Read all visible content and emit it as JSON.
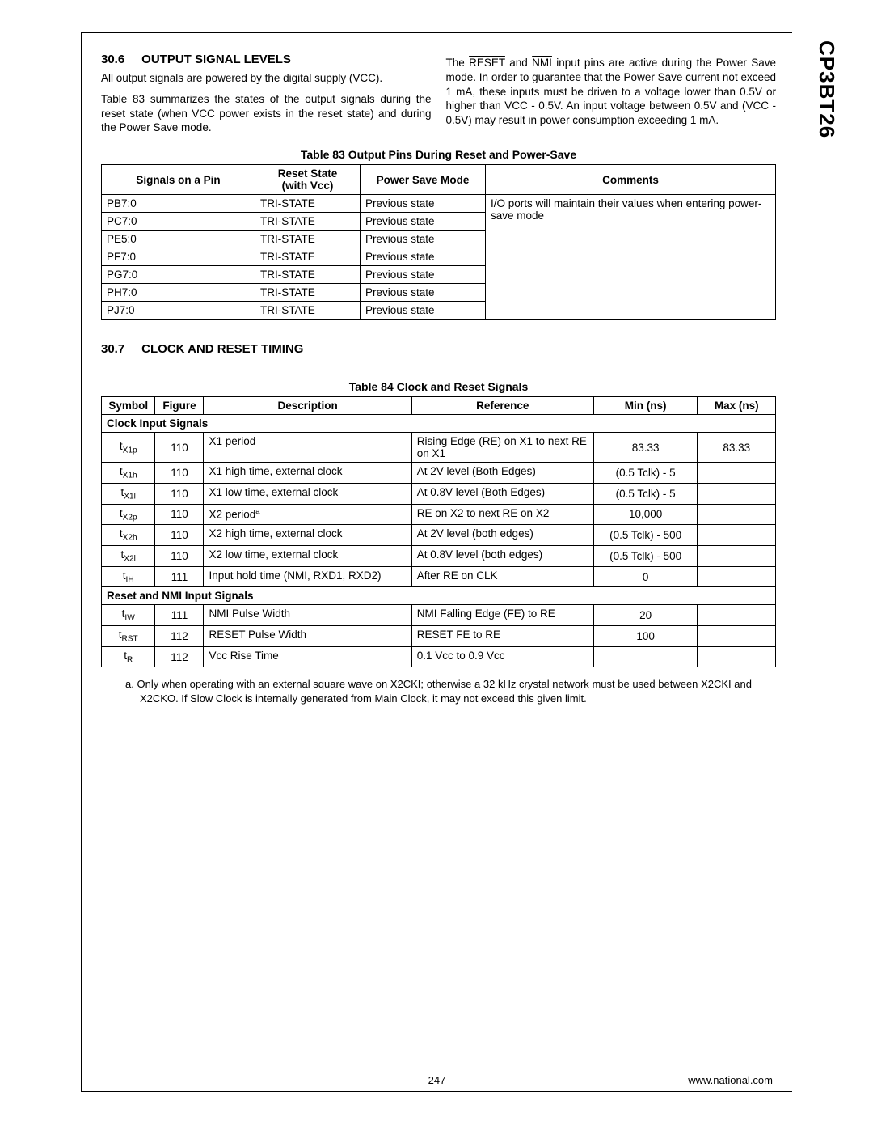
{
  "side_label": "CP3BT26",
  "section1": {
    "num": "30.6",
    "title": "OUTPUT SIGNAL LEVELS",
    "p1": "All output signals are powered by the digital supply (VCC).",
    "p2": "Table 83 summarizes the states of the output signals during the reset state (when VCC power exists in the reset state) and during the Power Save mode.",
    "p_right_pre": "The ",
    "p_right_mid1": " and ",
    "p_right_post": " input pins are active during the Power Save mode. In order to guarantee that the Power Save current not exceed 1 mA, these inputs must be driven to a voltage lower than 0.5V or higher than VCC - 0.5V. An input voltage between 0.5V and (VCC - 0.5V) may result in power consumption exceeding 1 mA.",
    "reset_word": "RESET",
    "nmi_word": "NMI"
  },
  "table83": {
    "caption": "Table 83    Output Pins During Reset and Power-Save",
    "headers": {
      "c0": "Signals on a Pin",
      "c1_l1": "Reset State",
      "c1_l2": "(with Vcc)",
      "c2": "Power Save Mode",
      "c3": "Comments"
    },
    "comment": "I/O ports will maintain their values when entering power-save mode",
    "rows": [
      {
        "pin": "PB7:0",
        "reset": "TRI-STATE",
        "psm": "Previous state"
      },
      {
        "pin": "PC7:0",
        "reset": "TRI-STATE",
        "psm": "Previous state"
      },
      {
        "pin": "PE5:0",
        "reset": "TRI-STATE",
        "psm": "Previous state"
      },
      {
        "pin": "PF7:0",
        "reset": "TRI-STATE",
        "psm": "Previous state"
      },
      {
        "pin": "PG7:0",
        "reset": "TRI-STATE",
        "psm": "Previous state"
      },
      {
        "pin": "PH7:0",
        "reset": "TRI-STATE",
        "psm": "Previous state"
      },
      {
        "pin": "PJ7:0",
        "reset": "TRI-STATE",
        "psm": "Previous state"
      }
    ]
  },
  "section2": {
    "num": "30.7",
    "title": "CLOCK AND RESET TIMING"
  },
  "table84": {
    "caption": "Table 84    Clock and Reset Signals",
    "headers": {
      "c0": "Symbol",
      "c1": "Figure",
      "c2": "Description",
      "c3": "Reference",
      "c4": "Min (ns)",
      "c5": "Max (ns)"
    },
    "sub1": "Clock Input Signals",
    "sub2": "Reset and NMI Input Signals",
    "clock_rows": [
      {
        "sym_base": "t",
        "sym_sub": "X1p",
        "fig": "110",
        "desc": "X1 period",
        "ref": "Rising Edge (RE) on X1 to next RE on X1",
        "min": "83.33",
        "max": "83.33"
      },
      {
        "sym_base": "t",
        "sym_sub": "X1h",
        "fig": "110",
        "desc": "X1 high time, external clock",
        "ref": "At 2V level (Both Edges)",
        "min": "(0.5 Tclk) - 5",
        "max": ""
      },
      {
        "sym_base": "t",
        "sym_sub": "X1l",
        "fig": "110",
        "desc": "X1 low time, external clock",
        "ref": "At 0.8V level (Both Edges)",
        "min": "(0.5 Tclk) - 5",
        "max": ""
      },
      {
        "sym_base": "t",
        "sym_sub": "X2p",
        "fig": "110",
        "desc_pre": "X2 period",
        "desc_sup": "a",
        "ref": "RE on X2 to next RE on X2",
        "min": "10,000",
        "max": ""
      },
      {
        "sym_base": "t",
        "sym_sub": "X2h",
        "fig": "110",
        "desc": "X2 high time, external clock",
        "ref": "At 2V level (both edges)",
        "min": "(0.5 Tclk) - 500",
        "max": ""
      },
      {
        "sym_base": "t",
        "sym_sub": "X2l",
        "fig": "110",
        "desc": "X2 low time, external clock",
        "ref": "At 0.8V level (both edges)",
        "min": "(0.5 Tclk) - 500",
        "max": ""
      },
      {
        "sym_base": "t",
        "sym_sub": "IH",
        "fig": "111",
        "desc_pre": "Input hold time (",
        "desc_ovl": "NMI",
        "desc_post": ", RXD1, RXD2)",
        "ref": "After RE on CLK",
        "min": "0",
        "max": ""
      }
    ],
    "reset_rows": [
      {
        "sym_base": "t",
        "sym_sub": "IW",
        "fig": "111",
        "desc_ovl": "NMI",
        "desc_post": " Pulse Width",
        "ref_ovl": "NMI",
        "ref_post": " Falling Edge (FE) to RE",
        "min": "20",
        "max": ""
      },
      {
        "sym_base": "t",
        "sym_sub": "RST",
        "fig": "112",
        "desc_ovl": "RESET",
        "desc_post": " Pulse Width",
        "ref_ovl": "RESET",
        "ref_post": " FE to RE",
        "min": "100",
        "max": ""
      },
      {
        "sym_base": "t",
        "sym_sub": "R",
        "fig": "112",
        "desc": "Vcc Rise Time",
        "ref": "0.1 Vcc to 0.9 Vcc",
        "min": "",
        "max": ""
      }
    ]
  },
  "footnote": "a. Only when operating with an external square wave on X2CKI; otherwise a 32 kHz crystal network must be used between X2CKI and X2CKO. If Slow Clock is internally generated from Main Clock, it may not exceed this given limit.",
  "footer": {
    "page": "247",
    "url": "www.national.com"
  }
}
